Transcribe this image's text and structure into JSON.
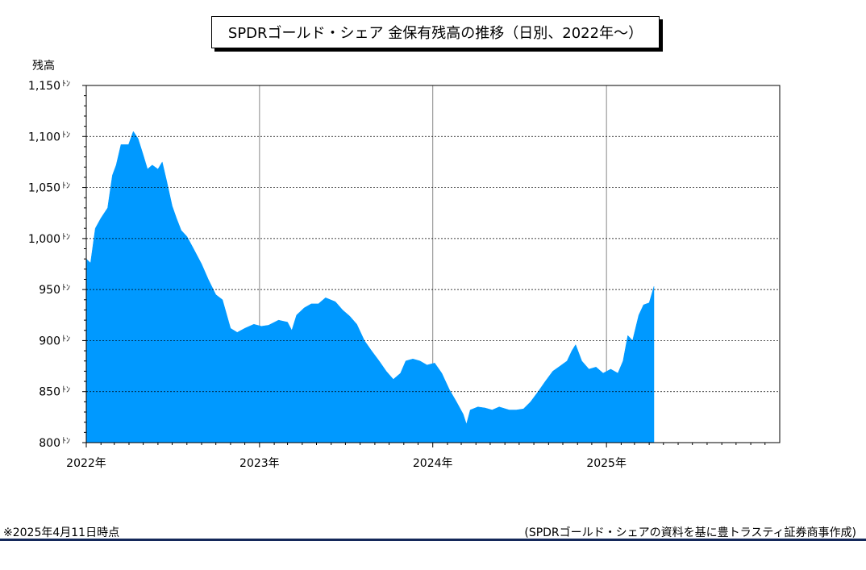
{
  "chart_data": {
    "type": "area",
    "title": "SPDRゴールド・シェア 金保有残高の推移（日別、2022年～）",
    "ylabel": "残高",
    "xlabel": "",
    "unit": "ﾄﾝ",
    "ylim": [
      800,
      1150
    ],
    "yticks": [
      "800",
      "850",
      "900",
      "950",
      "1,000",
      "1,050",
      "1,100",
      "1,150"
    ],
    "ytick_values": [
      800,
      850,
      900,
      950,
      1000,
      1050,
      1100,
      1150
    ],
    "xlim": [
      "2022-01-01",
      "2026-01-01"
    ],
    "xticks": [
      {
        "label": "2022年",
        "date": "2022-01-01"
      },
      {
        "label": "2023年",
        "date": "2023-01-01"
      },
      {
        "label": "2024年",
        "date": "2024-01-01"
      },
      {
        "label": "2025年",
        "date": "2025-01-01"
      }
    ],
    "grid": {
      "horizontal": "dashed",
      "vertical": "solid-yearly"
    },
    "fill_color": "#0099FF",
    "series": [
      {
        "values": [
          [
            "2022-01-01",
            980
          ],
          [
            "2022-01-10",
            976
          ],
          [
            "2022-01-20",
            1010
          ],
          [
            "2022-02-01",
            1020
          ],
          [
            "2022-02-15",
            1030
          ],
          [
            "2022-02-25",
            1062
          ],
          [
            "2022-03-05",
            1072
          ],
          [
            "2022-03-15",
            1092
          ],
          [
            "2022-03-31",
            1092
          ],
          [
            "2022-04-10",
            1105
          ],
          [
            "2022-04-20",
            1098
          ],
          [
            "2022-05-01",
            1082
          ],
          [
            "2022-05-10",
            1068
          ],
          [
            "2022-05-20",
            1072
          ],
          [
            "2022-06-01",
            1068
          ],
          [
            "2022-06-10",
            1075
          ],
          [
            "2022-06-20",
            1055
          ],
          [
            "2022-07-01",
            1032
          ],
          [
            "2022-07-10",
            1020
          ],
          [
            "2022-07-20",
            1008
          ],
          [
            "2022-08-01",
            1002
          ],
          [
            "2022-08-15",
            990
          ],
          [
            "2022-09-01",
            975
          ],
          [
            "2022-09-15",
            960
          ],
          [
            "2022-10-01",
            945
          ],
          [
            "2022-10-15",
            940
          ],
          [
            "2022-11-01",
            912
          ],
          [
            "2022-11-15",
            908
          ],
          [
            "2022-12-01",
            912
          ],
          [
            "2022-12-20",
            916
          ],
          [
            "2023-01-05",
            914
          ],
          [
            "2023-01-20",
            915
          ],
          [
            "2023-02-10",
            920
          ],
          [
            "2023-03-01",
            918
          ],
          [
            "2023-03-10",
            910
          ],
          [
            "2023-03-20",
            925
          ],
          [
            "2023-04-05",
            932
          ],
          [
            "2023-04-20",
            936
          ],
          [
            "2023-05-05",
            936
          ],
          [
            "2023-05-20",
            942
          ],
          [
            "2023-06-10",
            938
          ],
          [
            "2023-06-25",
            930
          ],
          [
            "2023-07-10",
            924
          ],
          [
            "2023-07-25",
            916
          ],
          [
            "2023-08-10",
            900
          ],
          [
            "2023-08-25",
            890
          ],
          [
            "2023-09-10",
            880
          ],
          [
            "2023-09-25",
            870
          ],
          [
            "2023-10-10",
            862
          ],
          [
            "2023-10-25",
            868
          ],
          [
            "2023-11-05",
            880
          ],
          [
            "2023-11-20",
            882
          ],
          [
            "2023-12-05",
            880
          ],
          [
            "2023-12-20",
            876
          ],
          [
            "2024-01-05",
            878
          ],
          [
            "2024-01-20",
            868
          ],
          [
            "2024-02-05",
            852
          ],
          [
            "2024-02-20",
            840
          ],
          [
            "2024-03-05",
            828
          ],
          [
            "2024-03-12",
            818
          ],
          [
            "2024-03-20",
            832
          ],
          [
            "2024-04-05",
            835
          ],
          [
            "2024-04-20",
            834
          ],
          [
            "2024-05-05",
            832
          ],
          [
            "2024-05-20",
            835
          ],
          [
            "2024-06-10",
            832
          ],
          [
            "2024-06-25",
            832
          ],
          [
            "2024-07-10",
            833
          ],
          [
            "2024-07-25",
            840
          ],
          [
            "2024-08-10",
            850
          ],
          [
            "2024-08-25",
            860
          ],
          [
            "2024-09-10",
            870
          ],
          [
            "2024-09-25",
            875
          ],
          [
            "2024-10-10",
            880
          ],
          [
            "2024-10-20",
            890
          ],
          [
            "2024-10-28",
            896
          ],
          [
            "2024-11-10",
            880
          ],
          [
            "2024-11-25",
            872
          ],
          [
            "2024-12-10",
            874
          ],
          [
            "2024-12-25",
            868
          ],
          [
            "2025-01-10",
            872
          ],
          [
            "2025-01-25",
            868
          ],
          [
            "2025-02-05",
            880
          ],
          [
            "2025-02-15",
            905
          ],
          [
            "2025-02-25",
            900
          ],
          [
            "2025-03-10",
            925
          ],
          [
            "2025-03-20",
            935
          ],
          [
            "2025-04-01",
            937
          ],
          [
            "2025-04-11",
            953
          ]
        ]
      }
    ]
  },
  "notes": {
    "as_of": "※2025年4月11日時点",
    "source": "(SPDRゴールド・シェアの資料を基に豊トラスティ証券商事作成)"
  }
}
